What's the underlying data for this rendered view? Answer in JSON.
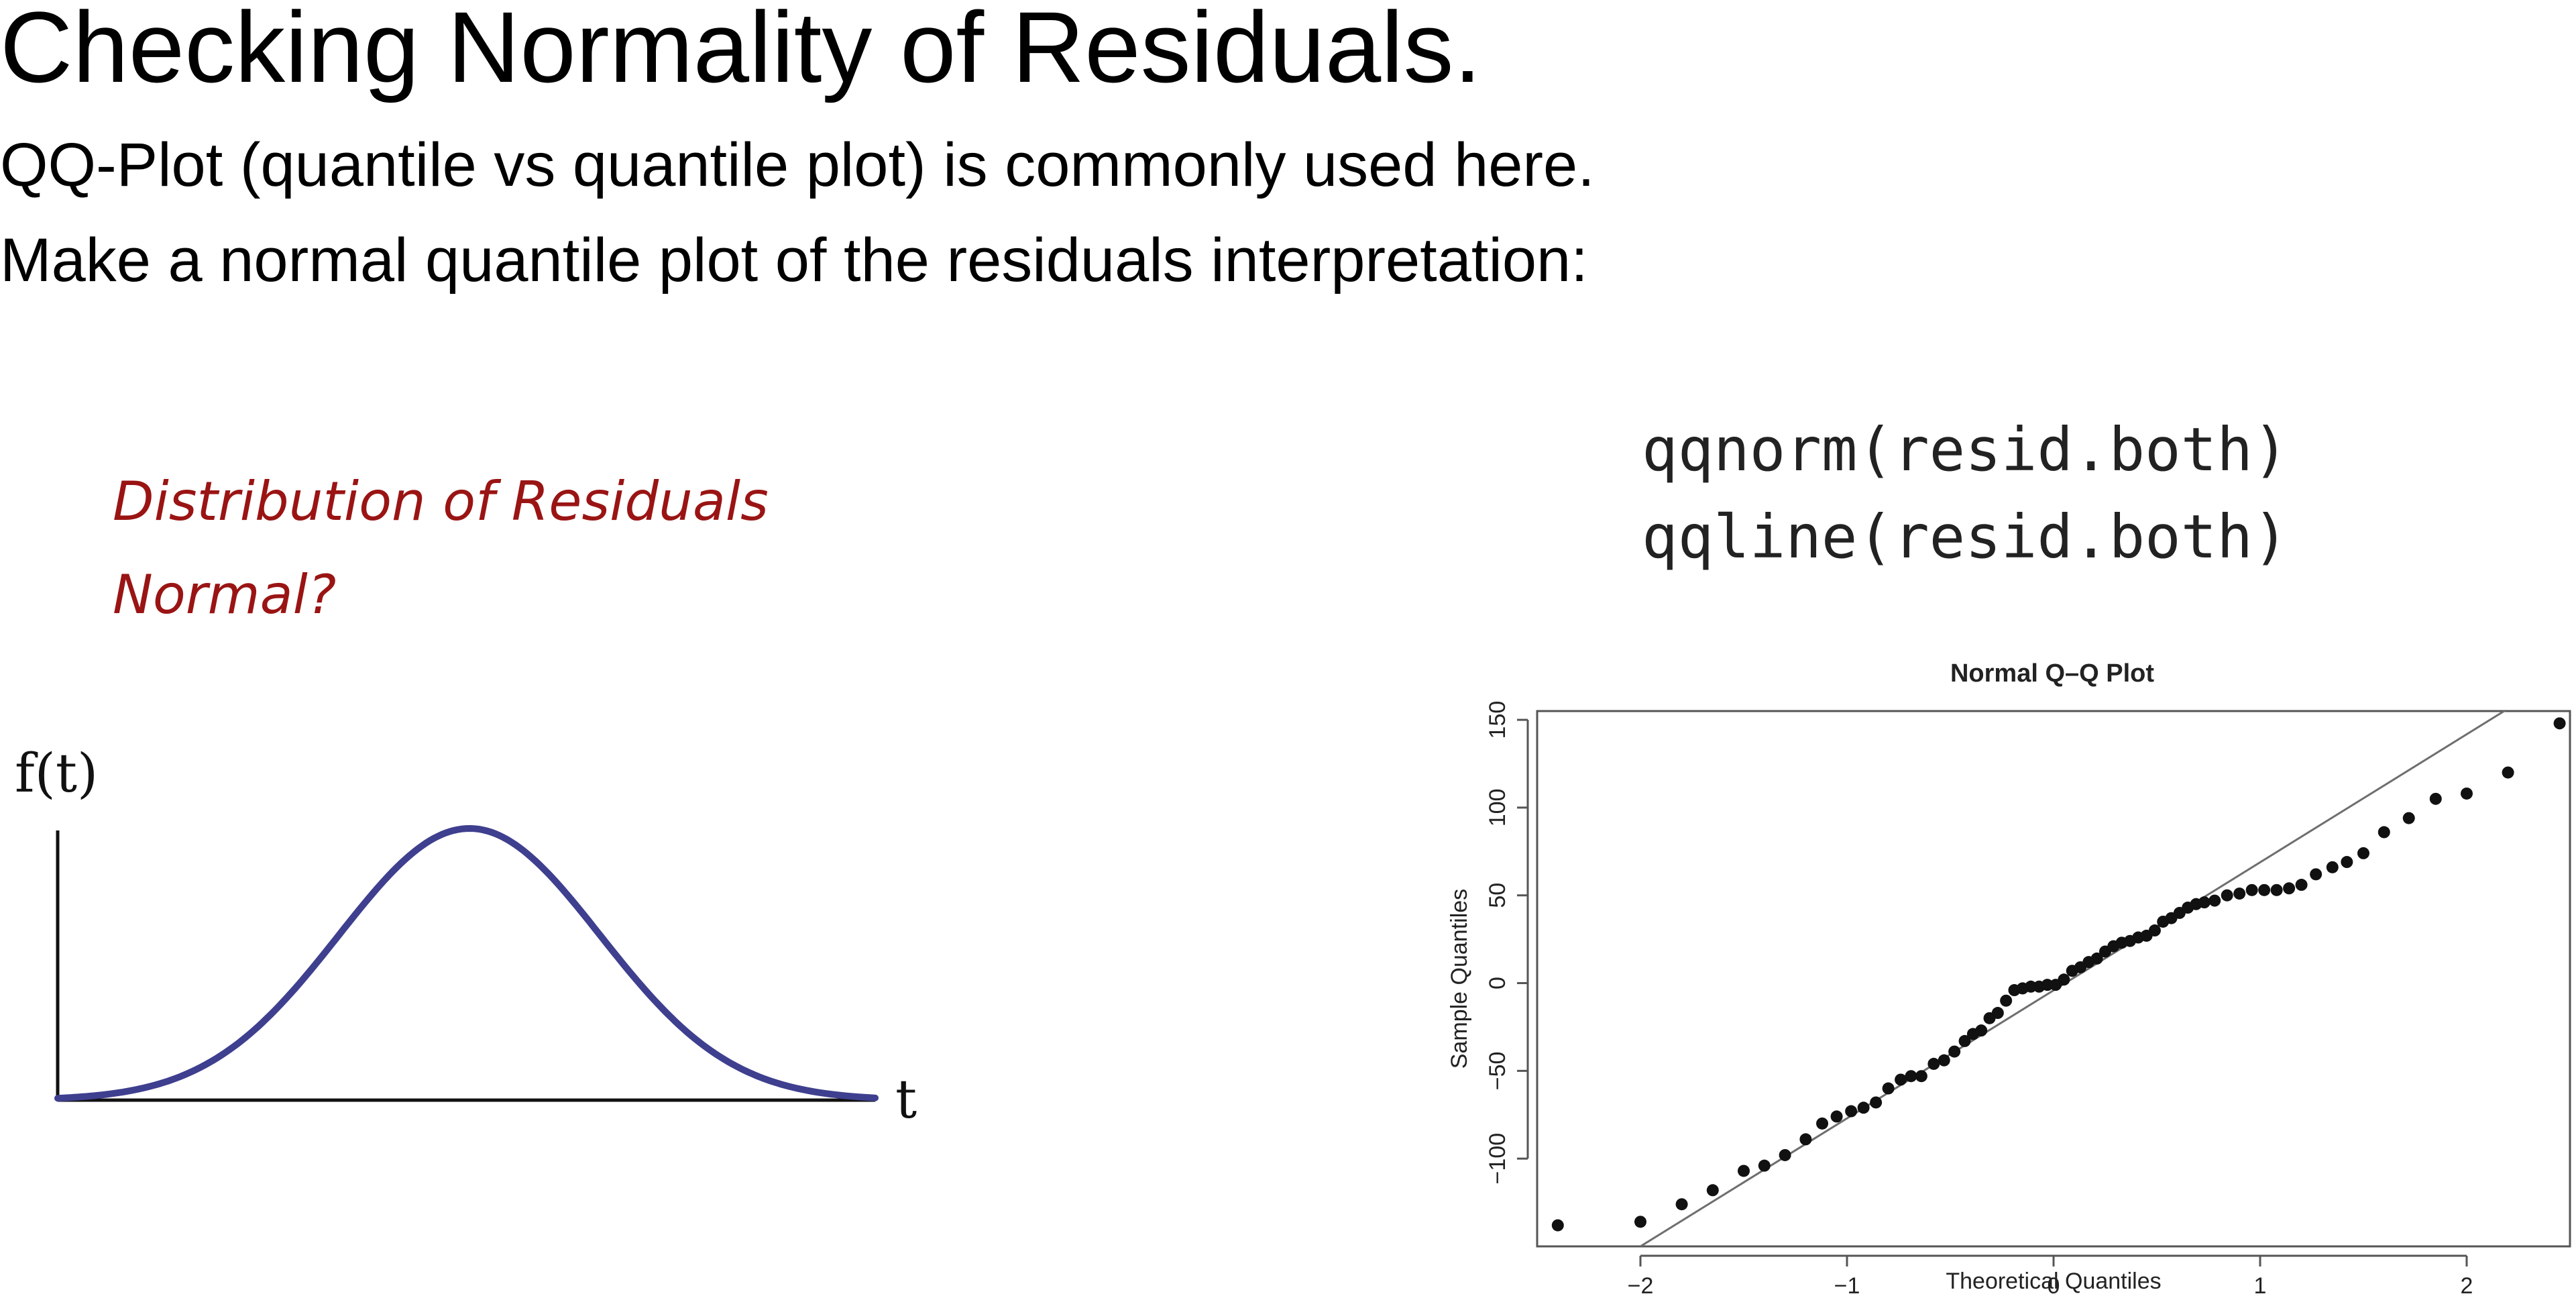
{
  "slide": {
    "title": "Checking Normality of Residuals.",
    "line1": "QQ-Plot (quantile vs quantile plot) is commonly used here.",
    "line2": "Make a normal quantile plot of the residuals interpretation:"
  },
  "question": {
    "line1": "Distribution of Residuals",
    "line2": "Normal?",
    "color": "#9a1414"
  },
  "code": {
    "line1": "qqnorm(resid.both)",
    "line2": "qqline(resid.both)"
  },
  "bell_curve": {
    "y_label": "f(t)",
    "x_label": "t",
    "color": "#3f3f8f"
  },
  "chart_data": {
    "type": "scatter",
    "title": "Normal Q–Q Plot",
    "xlabel": "Theoretical Quantiles",
    "ylabel": "Sample Quantiles",
    "xlim": [
      -2.5,
      2.5
    ],
    "ylim": [
      -150,
      155
    ],
    "xticks": [
      -2,
      -1,
      0,
      1,
      2
    ],
    "xtick_labels": [
      "−2",
      "−1",
      "0",
      "1",
      "2"
    ],
    "yticks": [
      -100,
      -50,
      0,
      50,
      100,
      150
    ],
    "ytick_labels": [
      "−100",
      "−50",
      "0",
      "50",
      "100",
      "150"
    ],
    "grid": false,
    "points": [
      [
        -2.4,
        -138
      ],
      [
        -2.0,
        -136
      ],
      [
        -1.8,
        -126
      ],
      [
        -1.65,
        -118
      ],
      [
        -1.5,
        -107
      ],
      [
        -1.4,
        -104
      ],
      [
        -1.3,
        -98
      ],
      [
        -1.2,
        -89
      ],
      [
        -1.12,
        -80
      ],
      [
        -1.05,
        -76
      ],
      [
        -0.98,
        -73
      ],
      [
        -0.92,
        -71
      ],
      [
        -0.86,
        -68
      ],
      [
        -0.8,
        -60
      ],
      [
        -0.74,
        -55
      ],
      [
        -0.69,
        -53
      ],
      [
        -0.64,
        -53
      ],
      [
        -0.58,
        -46
      ],
      [
        -0.53,
        -44
      ],
      [
        -0.48,
        -39
      ],
      [
        -0.43,
        -33
      ],
      [
        -0.39,
        -29
      ],
      [
        -0.35,
        -27
      ],
      [
        -0.31,
        -20
      ],
      [
        -0.27,
        -17
      ],
      [
        -0.23,
        -10
      ],
      [
        -0.19,
        -4
      ],
      [
        -0.15,
        -3
      ],
      [
        -0.11,
        -2
      ],
      [
        -0.07,
        -2
      ],
      [
        -0.03,
        -1
      ],
      [
        0.01,
        -1
      ],
      [
        0.05,
        2
      ],
      [
        0.09,
        7
      ],
      [
        0.13,
        9
      ],
      [
        0.17,
        12
      ],
      [
        0.21,
        14
      ],
      [
        0.25,
        18
      ],
      [
        0.29,
        21
      ],
      [
        0.33,
        23
      ],
      [
        0.37,
        24
      ],
      [
        0.41,
        26
      ],
      [
        0.45,
        27
      ],
      [
        0.49,
        30
      ],
      [
        0.53,
        35
      ],
      [
        0.57,
        37
      ],
      [
        0.61,
        40
      ],
      [
        0.65,
        43
      ],
      [
        0.69,
        45
      ],
      [
        0.73,
        46
      ],
      [
        0.78,
        47
      ],
      [
        0.84,
        50
      ],
      [
        0.9,
        51
      ],
      [
        0.96,
        53
      ],
      [
        1.02,
        53
      ],
      [
        1.08,
        53
      ],
      [
        1.14,
        54
      ],
      [
        1.2,
        56
      ],
      [
        1.27,
        62
      ],
      [
        1.35,
        66
      ],
      [
        1.42,
        69
      ],
      [
        1.5,
        74
      ],
      [
        1.6,
        86
      ],
      [
        1.72,
        94
      ],
      [
        1.85,
        105
      ],
      [
        2.0,
        108
      ],
      [
        2.2,
        120
      ],
      [
        2.45,
        148
      ]
    ],
    "qqline": {
      "x": [
        -2.0,
        2.25
      ],
      "y": [
        -150,
        160
      ]
    }
  }
}
